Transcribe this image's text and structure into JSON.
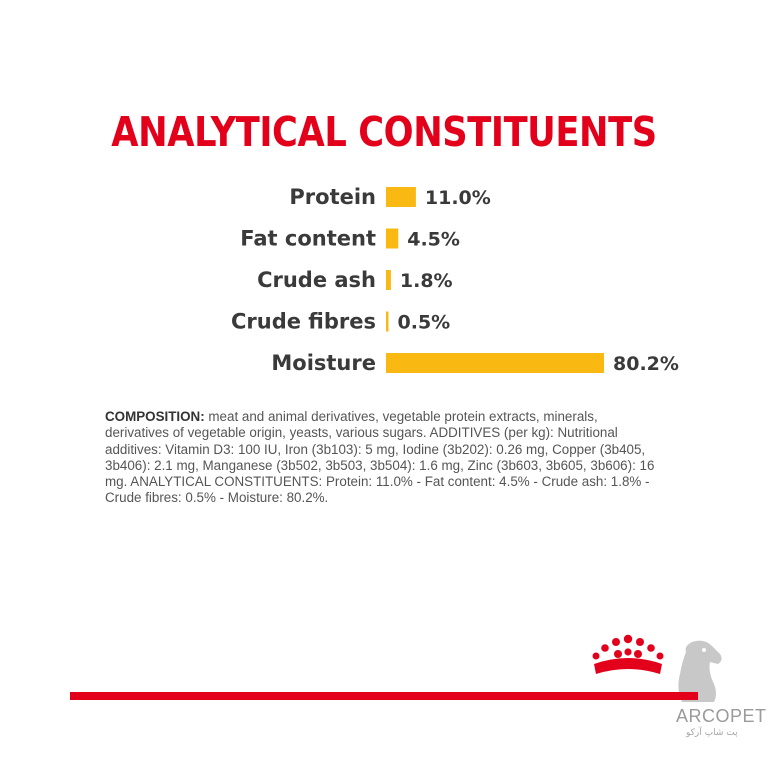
{
  "title": "ANALYTICAL CONSTITUENTS",
  "chart_data": {
    "type": "bar",
    "orientation": "horizontal",
    "title": "ANALYTICAL CONSTITUENTS",
    "categories": [
      "Protein",
      "Fat content",
      "Crude ash",
      "Crude fibres",
      "Moisture"
    ],
    "values": [
      11.0,
      4.5,
      1.8,
      0.5,
      80.2
    ],
    "value_labels": [
      "11.0%",
      "4.5%",
      "1.8%",
      "0.5%",
      "80.2%"
    ],
    "unit": "%",
    "bar_color": "#f9b912",
    "grid": false,
    "legend": "none"
  },
  "composition": {
    "heading": "COMPOSITION:",
    "text": " meat and animal derivatives, vegetable protein extracts, minerals, derivatives of vegetable origin, yeasts, various sugars. ADDITIVES (per kg): Nutritional additives: Vitamin D3: 100 IU, Iron (3b103): 5 mg, Iodine (3b202): 0.26 mg, Copper (3b405, 3b406): 2.1 mg, Manganese (3b502, 3b503, 3b504): 1.6 mg, Zinc (3b603, 3b605, 3b606): 16 mg. ANALYTICAL CONSTITUENTS: Protein: 11.0% - Fat content: 4.5% - Crude ash: 1.8% - Crude fibres: 0.5% - Moisture: 80.2%."
  },
  "colors": {
    "accent": "#e3001b",
    "bar": "#f9b912",
    "text": "#3a3a3a"
  },
  "icons": {
    "crown": "royal-canin-crown-icon",
    "dog": "dog-silhouette-icon"
  },
  "watermark": {
    "brand": "ARCOPET",
    "subtitle": "پت شاپ آرکو"
  }
}
